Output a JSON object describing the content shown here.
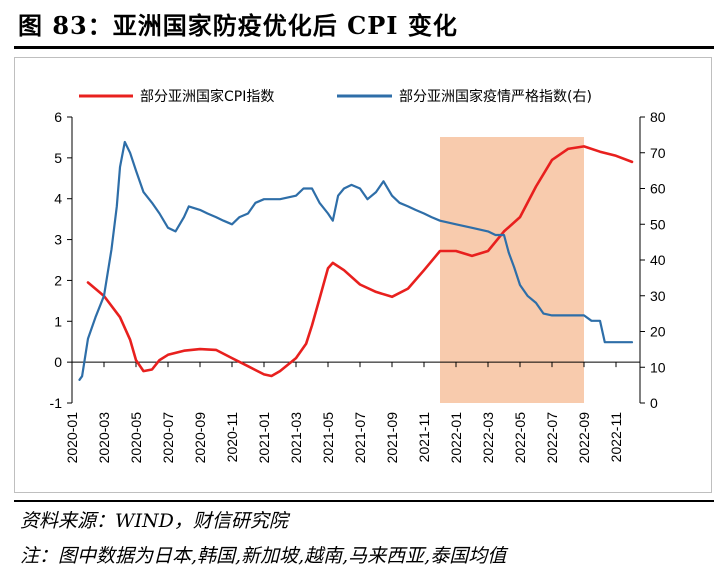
{
  "header": {
    "title": "图 83：亚洲国家防疫优化后 CPI 变化"
  },
  "footer": {
    "source": "资料来源：WIND，财信研究院",
    "note": "注：图中数据为日本,韩国,新加坡,越南,马来西亚,泰国均值"
  },
  "chart_data": {
    "type": "line",
    "x_ticks": [
      "2020-01",
      "2020-03",
      "2020-05",
      "2020-07",
      "2020-09",
      "2020-11",
      "2021-01",
      "2021-03",
      "2021-05",
      "2021-07",
      "2021-09",
      "2021-11",
      "2022-01",
      "2022-03",
      "2022-05",
      "2022-07",
      "2022-09",
      "2022-11"
    ],
    "y_left": {
      "ticks": [
        -1,
        0,
        1,
        2,
        3,
        4,
        5,
        6
      ],
      "range": [
        -1,
        6
      ]
    },
    "y_right": {
      "ticks": [
        0,
        10,
        20,
        30,
        40,
        50,
        60,
        70,
        80
      ],
      "range": [
        0,
        80
      ]
    },
    "highlight": {
      "start": "2021-12",
      "end": "2022-09",
      "color": "#f8cbad"
    },
    "legend_position": "top",
    "series": [
      {
        "name": "部分亚洲国家CPI指数",
        "axis": "left",
        "color": "#e8201e",
        "points": [
          [
            "2020-02",
            1.95
          ],
          [
            "2020-03",
            1.62
          ],
          [
            "2020-04",
            1.1
          ],
          [
            "2020-04-20",
            0.55
          ],
          [
            "2020-05",
            0.05
          ],
          [
            "2020-05-15",
            -0.22
          ],
          [
            "2020-06",
            -0.18
          ],
          [
            "2020-06-15",
            0.05
          ],
          [
            "2020-07",
            0.18
          ],
          [
            "2020-08",
            0.28
          ],
          [
            "2020-09",
            0.32
          ],
          [
            "2020-10",
            0.3
          ],
          [
            "2020-11",
            0.1
          ],
          [
            "2020-12",
            -0.1
          ],
          [
            "2021-01",
            -0.3
          ],
          [
            "2021-01-15",
            -0.34
          ],
          [
            "2021-02",
            -0.22
          ],
          [
            "2021-03",
            0.1
          ],
          [
            "2021-03-20",
            0.45
          ],
          [
            "2021-04",
            0.9
          ],
          [
            "2021-04-15",
            1.55
          ],
          [
            "2021-05",
            2.3
          ],
          [
            "2021-05-10",
            2.43
          ],
          [
            "2021-06",
            2.25
          ],
          [
            "2021-07",
            1.9
          ],
          [
            "2021-08",
            1.72
          ],
          [
            "2021-09",
            1.6
          ],
          [
            "2021-10",
            1.8
          ],
          [
            "2021-11",
            2.25
          ],
          [
            "2021-12",
            2.72
          ],
          [
            "2022-01",
            2.72
          ],
          [
            "2022-02",
            2.6
          ],
          [
            "2022-03",
            2.72
          ],
          [
            "2022-04",
            3.2
          ],
          [
            "2022-05",
            3.55
          ],
          [
            "2022-06",
            4.3
          ],
          [
            "2022-07",
            4.95
          ],
          [
            "2022-08",
            5.22
          ],
          [
            "2022-09",
            5.28
          ],
          [
            "2022-10",
            5.15
          ],
          [
            "2022-11",
            5.05
          ],
          [
            "2022-12",
            4.9
          ]
        ]
      },
      {
        "name": "部分亚洲国家疫情严格指数(右)",
        "axis": "right",
        "color": "#2e6ea8",
        "points": [
          [
            "2020-01-15",
            6.5
          ],
          [
            "2020-01-20",
            7.5
          ],
          [
            "2020-02",
            18
          ],
          [
            "2020-02-15",
            24
          ],
          [
            "2020-03",
            30
          ],
          [
            "2020-03-15",
            43
          ],
          [
            "2020-03-25",
            55
          ],
          [
            "2020-04",
            66
          ],
          [
            "2020-04-10",
            73
          ],
          [
            "2020-04-20",
            70
          ],
          [
            "2020-05",
            65
          ],
          [
            "2020-05-15",
            59
          ],
          [
            "2020-06",
            56
          ],
          [
            "2020-06-15",
            53
          ],
          [
            "2020-07",
            49
          ],
          [
            "2020-07-15",
            48
          ],
          [
            "2020-08",
            52
          ],
          [
            "2020-08-10",
            55
          ],
          [
            "2020-09",
            54
          ],
          [
            "2020-09-15",
            53
          ],
          [
            "2020-10",
            52
          ],
          [
            "2020-10-15",
            51
          ],
          [
            "2020-11",
            50
          ],
          [
            "2020-11-15",
            52
          ],
          [
            "2020-12",
            53
          ],
          [
            "2020-12-15",
            56
          ],
          [
            "2021-01",
            57
          ],
          [
            "2021-02",
            57
          ],
          [
            "2021-03",
            58
          ],
          [
            "2021-03-15",
            60
          ],
          [
            "2021-04",
            60
          ],
          [
            "2021-04-15",
            56
          ],
          [
            "2021-05",
            53
          ],
          [
            "2021-05-10",
            51
          ],
          [
            "2021-05-20",
            58
          ],
          [
            "2021-06",
            60
          ],
          [
            "2021-06-15",
            61
          ],
          [
            "2021-07",
            60
          ],
          [
            "2021-07-15",
            57
          ],
          [
            "2021-08",
            59
          ],
          [
            "2021-08-15",
            62
          ],
          [
            "2021-09",
            58
          ],
          [
            "2021-09-15",
            56
          ],
          [
            "2021-10",
            55
          ],
          [
            "2021-10-15",
            54
          ],
          [
            "2021-11",
            53
          ],
          [
            "2021-11-15",
            52
          ],
          [
            "2021-12",
            51
          ],
          [
            "2022-01",
            50
          ],
          [
            "2022-02",
            49
          ],
          [
            "2022-03",
            48
          ],
          [
            "2022-03-15",
            47
          ],
          [
            "2022-04",
            47
          ],
          [
            "2022-04-10",
            42
          ],
          [
            "2022-04-20",
            38
          ],
          [
            "2022-05",
            33
          ],
          [
            "2022-05-15",
            30
          ],
          [
            "2022-06",
            28
          ],
          [
            "2022-06-15",
            25
          ],
          [
            "2022-07",
            24.5
          ],
          [
            "2022-08",
            24.5
          ],
          [
            "2022-09",
            24.5
          ],
          [
            "2022-09-15",
            23
          ],
          [
            "2022-10",
            23
          ],
          [
            "2022-10-10",
            17
          ],
          [
            "2022-11",
            17
          ],
          [
            "2022-12",
            17
          ]
        ]
      }
    ]
  }
}
